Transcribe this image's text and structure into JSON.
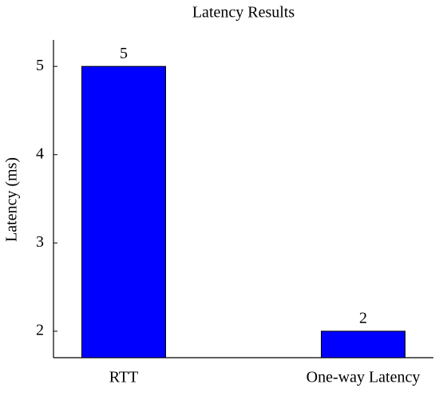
{
  "chart_data": {
    "type": "bar",
    "title": "Latency Results",
    "y_label": "Latency (ms)",
    "categories": [
      "RTT",
      "One-way Latency"
    ],
    "values": [
      5,
      2
    ],
    "color": "#0000ff",
    "ylim": [
      1.7,
      5.3
    ],
    "yticks": [
      2,
      3,
      4,
      5
    ],
    "grid": false,
    "value_labels_shown": true
  }
}
